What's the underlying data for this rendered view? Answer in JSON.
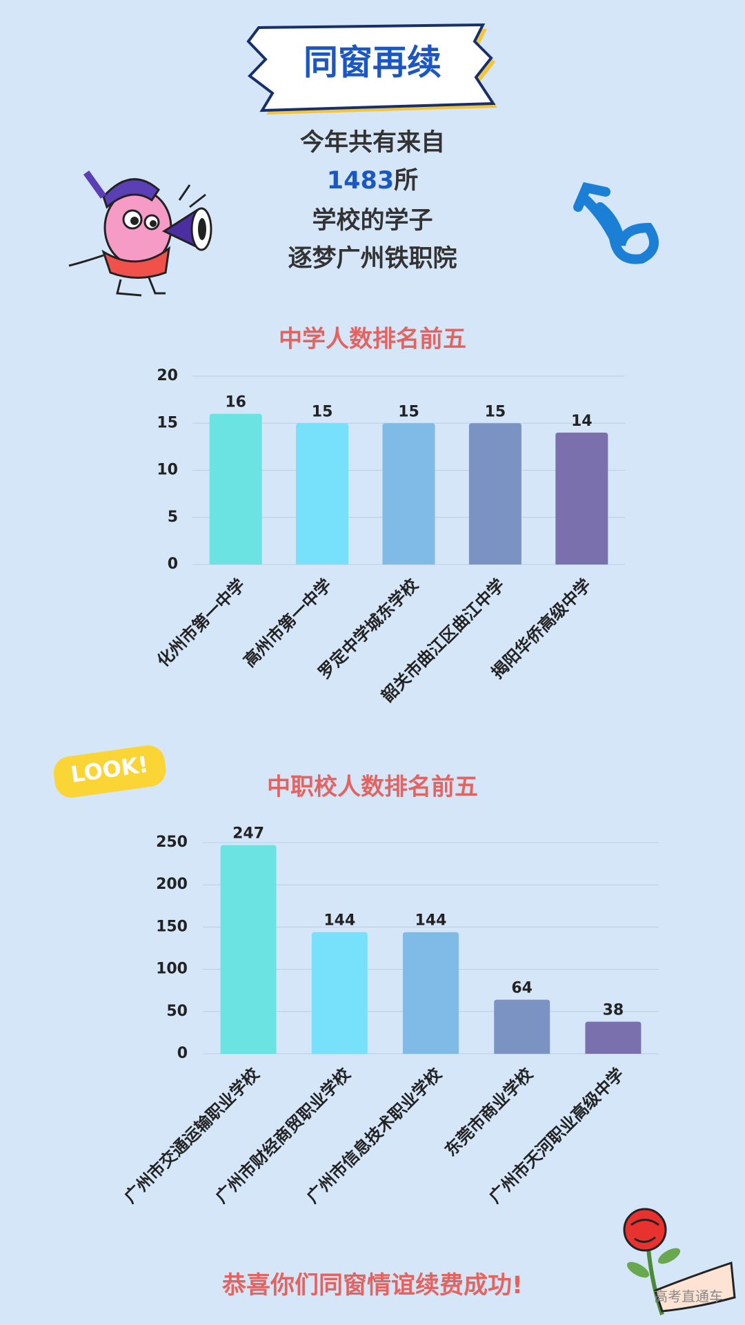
{
  "header": {
    "title": "同窗再续",
    "line1": "今年共有来自",
    "count": 1483,
    "count_unit": "所",
    "line3": "学校的学子",
    "line4": "逐梦广州铁职院"
  },
  "sticker": "LOOK!",
  "footer": "恭喜你们同窗情谊续费成功!",
  "watermark": "高考直通车",
  "chart_data": [
    {
      "type": "bar",
      "title": "中学人数排名前五",
      "categories": [
        "化州市第一中学",
        "高州市第一中学",
        "罗定中学城东学校",
        "韶关市曲江区曲江中学",
        "揭阳华侨高级中学"
      ],
      "values": [
        16,
        15,
        15,
        15,
        14
      ],
      "colors": [
        "#6ce3e3",
        "#77e0fa",
        "#80bbe8",
        "#7b93c3",
        "#7b70ae"
      ],
      "ylim": [
        0,
        20
      ],
      "yticks": [
        0,
        5,
        10,
        15,
        20
      ],
      "grid": true
    },
    {
      "type": "bar",
      "title": "中职校人数排名前五",
      "categories": [
        "广州市交通运输职业学校",
        "广州市财经商贸职业学校",
        "广州市信息技术职业学校",
        "东莞市商业学校",
        "广州市天河职业高级中学"
      ],
      "values": [
        247,
        144,
        144,
        64,
        38
      ],
      "colors": [
        "#6ce3e3",
        "#77e0fa",
        "#80bbe8",
        "#7b93c3",
        "#7b70ae"
      ],
      "ylim": [
        0,
        250
      ],
      "yticks": [
        0,
        50,
        100,
        150,
        200,
        250
      ],
      "grid": true
    }
  ]
}
